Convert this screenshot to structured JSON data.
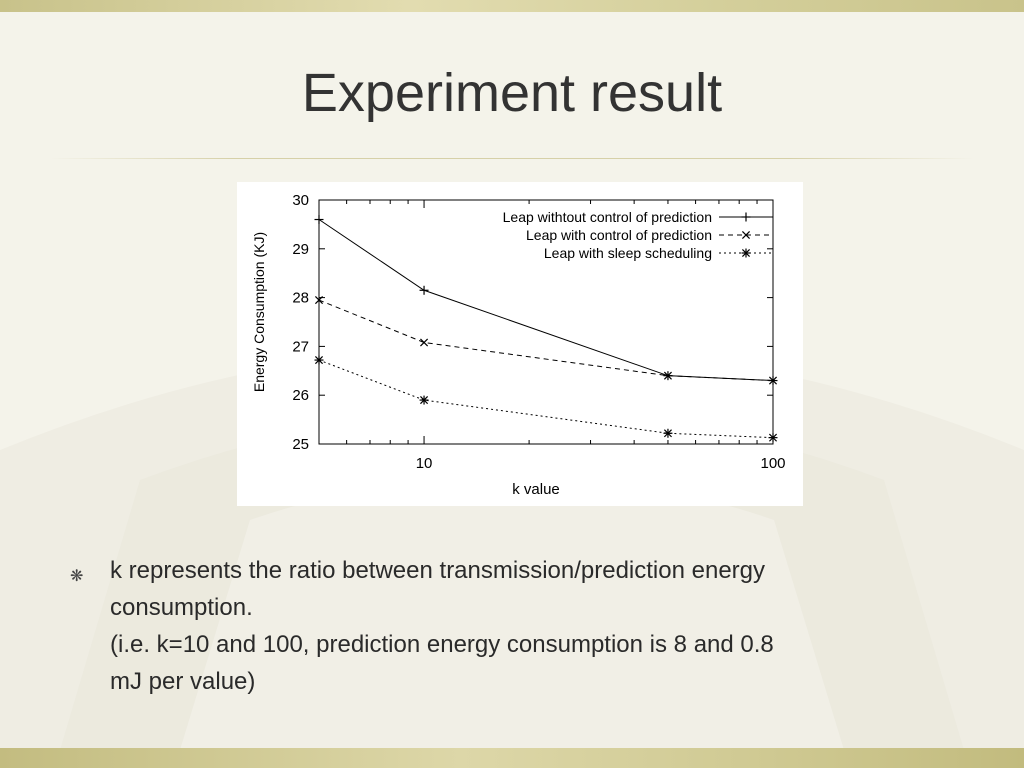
{
  "slide": {
    "title": "Experiment result",
    "bullet_symbol": "❋",
    "text_lines": [
      "k represents the ratio between transmission/prediction energy",
      "consumption.",
      "(i.e. k=10 and 100, prediction energy consumption is 8 and 0.8",
      "mJ per value)"
    ]
  },
  "chart_data": {
    "type": "line",
    "xlabel": "k value",
    "ylabel": "Energy Consumption (KJ)",
    "x_scale": "log",
    "xlim": [
      5,
      100
    ],
    "ylim": [
      25,
      30
    ],
    "xticks": [
      10,
      100
    ],
    "yticks": [
      25,
      26,
      27,
      28,
      29,
      30
    ],
    "legend_position": "top-right",
    "grid": false,
    "series": [
      {
        "name": "Leap withtout control of prediction",
        "marker": "+",
        "dash": "solid",
        "x": [
          5,
          10,
          50,
          100
        ],
        "y": [
          29.6,
          28.15,
          26.4,
          26.3
        ]
      },
      {
        "name": "Leap with control of prediction",
        "marker": "x",
        "dash": "dashed",
        "x": [
          5,
          10,
          50,
          100
        ],
        "y": [
          27.95,
          27.08,
          26.4,
          26.3
        ]
      },
      {
        "name": "Leap with sleep scheduling",
        "marker": "*",
        "dash": "dotted",
        "x": [
          5,
          10,
          50,
          100
        ],
        "y": [
          26.72,
          25.9,
          25.22,
          25.13
        ]
      }
    ]
  }
}
